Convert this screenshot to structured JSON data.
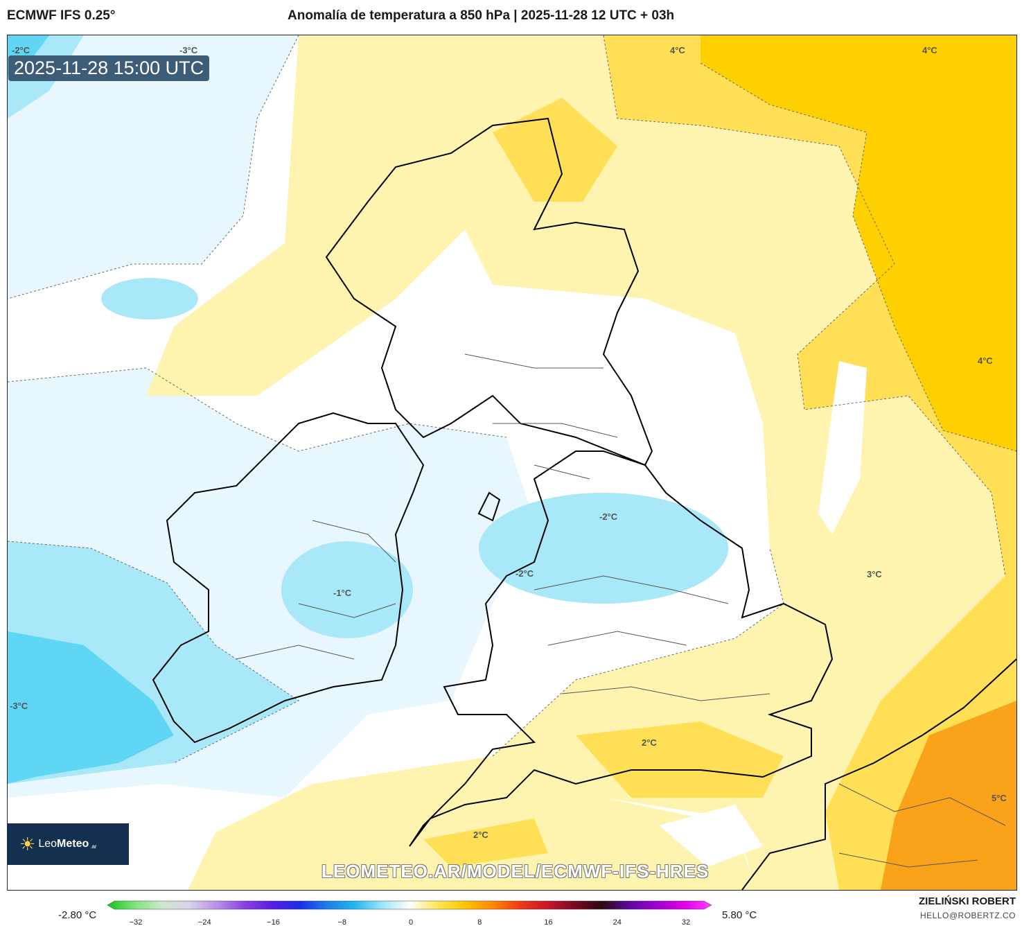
{
  "header": {
    "model": "ECMWF IFS 0.25°",
    "title": "Anomalía de temperatura a 850 hPa | 2025-11-28 12 UTC + 03h"
  },
  "map": {
    "valid_time": "2025-11-28 15:00 UTC",
    "watermark": "LEOMETEO.AR/MODEL/ECMWF-IFS-HRES",
    "isoline_labels": [
      "-2°C",
      "-3°C",
      "4°C",
      "4°C",
      "4°C",
      "-2°C",
      "-2°C",
      "-1°C",
      "3°C",
      "-3°C",
      "2°C",
      "5°C",
      "2°C"
    ],
    "colors": {
      "cold_deep": "#5fd6f3",
      "cold_mid": "#a8e8f8",
      "cold_light": "#e8f7fd",
      "neutral": "#ffffff",
      "warm_light": "#fff3b0",
      "warm_mid": "#ffdf55",
      "warm_deep": "#ffd000",
      "hot": "#f9a21a"
    }
  },
  "logo": {
    "brand_light": "Leo",
    "brand_bold": "Meteo",
    "tld": ".ar"
  },
  "colorbar": {
    "min_label": "-2.80 °C",
    "max_label": "5.80 °C",
    "ticks": [
      "−32",
      "−24",
      "−16",
      "−8",
      "0",
      "8",
      "16",
      "24",
      "32"
    ],
    "stops": [
      "#19c41e",
      "#7ee37a",
      "#cde8cd",
      "#d8d0ea",
      "#b890e8",
      "#8a40e0",
      "#5a1de0",
      "#1a2ee8",
      "#1c7de8",
      "#23b5f0",
      "#9de4f8",
      "#ffffff",
      "#ffe85a",
      "#ffc400",
      "#ff8a00",
      "#ef3c16",
      "#c9162a",
      "#7a0a24",
      "#2a0a10",
      "#5a0aa0",
      "#a000d0",
      "#e000e8",
      "#ff40ff"
    ]
  },
  "footer": {
    "author": "ZIELIŃSKI ROBERT",
    "contact": "HELLO@ROBERTZ.CO"
  }
}
